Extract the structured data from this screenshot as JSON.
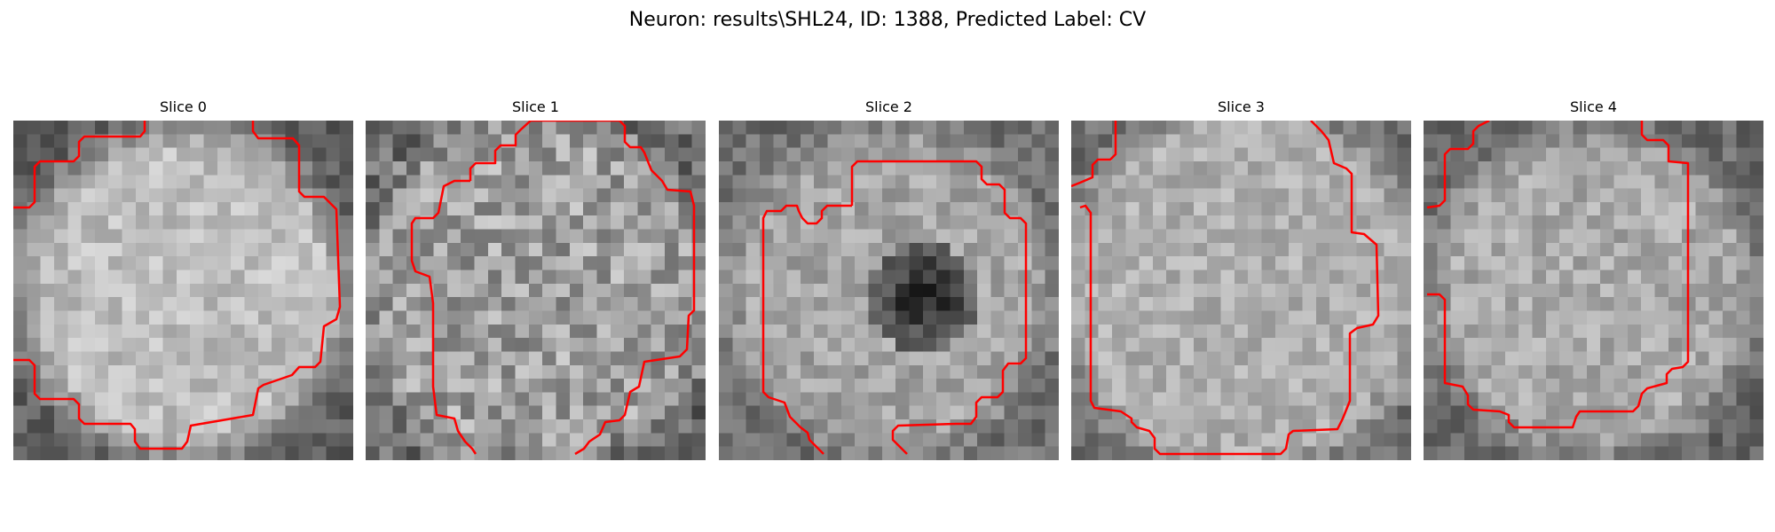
{
  "title": "Neuron: results\\SHL24, ID: 1388, Predicted Label: CV",
  "panels": [
    {
      "title": "Slice 0"
    },
    {
      "title": "Slice 1"
    },
    {
      "title": "Slice 2"
    },
    {
      "title": "Slice 3"
    },
    {
      "title": "Slice 4"
    }
  ],
  "colors": {
    "background": "#ffffff",
    "contour": "#ff0000",
    "image_colormap": "grayscale"
  }
}
